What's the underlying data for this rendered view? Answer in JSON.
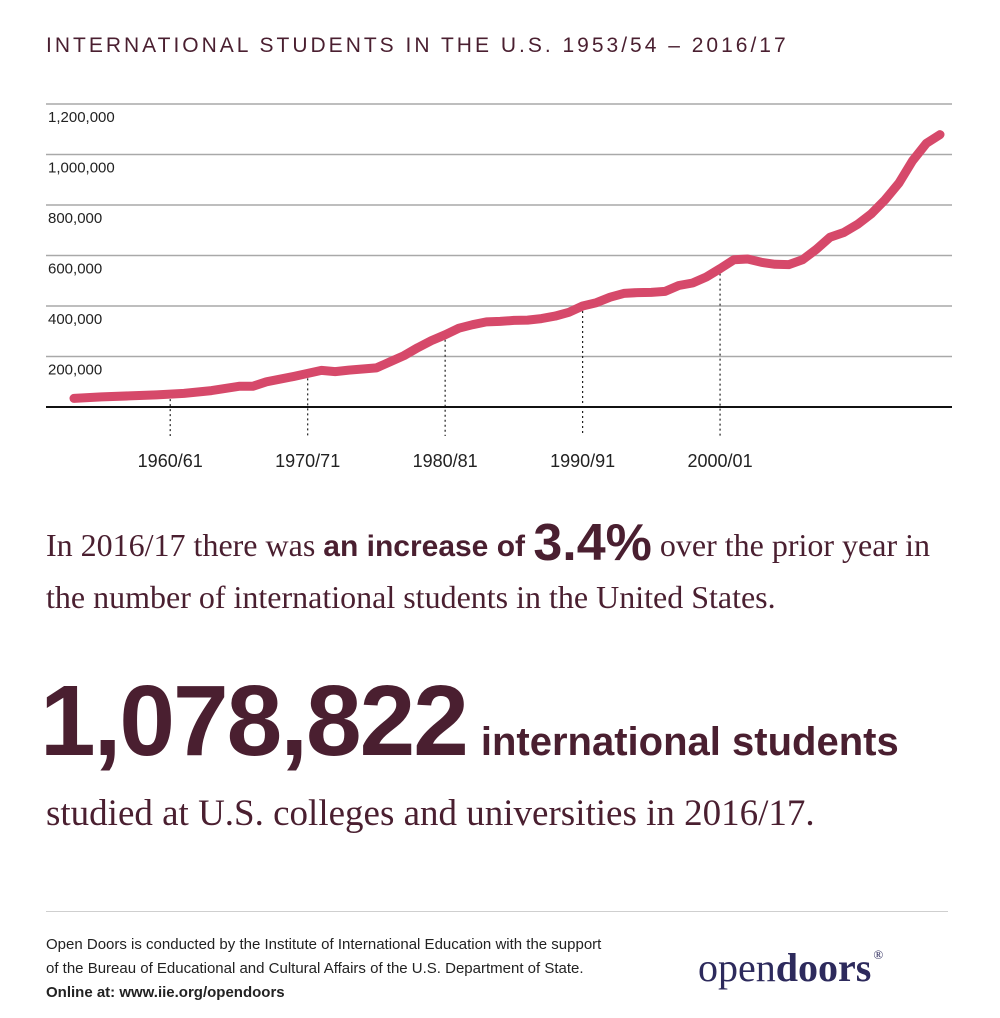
{
  "title": "INTERNATIONAL STUDENTS IN THE U.S. 1953/54 – 2016/17",
  "chart_data": {
    "type": "line",
    "ylim": [
      0,
      1200000
    ],
    "xlim": [
      1953,
      2016
    ],
    "y_ticks": [
      {
        "value": 200000,
        "label": "200,000"
      },
      {
        "value": 400000,
        "label": "400,000"
      },
      {
        "value": 600000,
        "label": "600,000"
      },
      {
        "value": 800000,
        "label": "800,000"
      },
      {
        "value": 1000000,
        "label": "1,000,000"
      },
      {
        "value": 1200000,
        "label": "1,200,000"
      }
    ],
    "x_ticks": [
      {
        "value": 1960,
        "label": "1960/61"
      },
      {
        "value": 1970,
        "label": "1970/71"
      },
      {
        "value": 1980,
        "label": "1980/81"
      },
      {
        "value": 1990,
        "label": "1990/91"
      },
      {
        "value": 2000,
        "label": "2000/01"
      }
    ],
    "grid": true,
    "line_color": "#d6496a",
    "series": [
      {
        "x": [
          1953,
          1955,
          1957,
          1959,
          1961,
          1963,
          1965,
          1966,
          1967,
          1969,
          1971,
          1972,
          1973,
          1975,
          1976,
          1977,
          1978,
          1979,
          1980,
          1981,
          1982,
          1983,
          1984,
          1985,
          1986,
          1987,
          1988,
          1989,
          1990,
          1991,
          1992,
          1993,
          1994,
          1995,
          1996,
          1997,
          1998,
          1999,
          2000,
          2001,
          2002,
          2003,
          2004,
          2005,
          2006,
          2007,
          2008,
          2009,
          2010,
          2011,
          2012,
          2013,
          2014,
          2015,
          2016
        ],
        "y": [
          34000,
          40000,
          44000,
          48000,
          54000,
          65000,
          82000,
          82000,
          100000,
          121000,
          145000,
          140000,
          146000,
          155000,
          179000,
          203000,
          235000,
          263000,
          286000,
          312000,
          326000,
          337000,
          339000,
          343000,
          344000,
          350000,
          360000,
          375000,
          400000,
          413000,
          435000,
          450000,
          453000,
          454000,
          458000,
          481000,
          491000,
          515000,
          548000,
          583000,
          586000,
          573000,
          565000,
          564000,
          583000,
          624000,
          672000,
          691000,
          723000,
          765000,
          820000,
          886000,
          975000,
          1044000,
          1078822
        ]
      }
    ]
  },
  "sentence1": {
    "prefix": "In 2016/17 there was ",
    "strong": "an increase of ",
    "pct": "3.4%",
    "suffix": " over the prior year in the number of international students in the United States."
  },
  "highlight": {
    "number": "1,078,822",
    "label": "international students"
  },
  "sentence2": "studied at U.S. colleges and universities in 2016/17.",
  "footer": {
    "text": "Open Doors is conducted by the Institute of International Education with the support of the Bureau of Educational and Cultural Affairs of the U.S. Department of State. ",
    "online": "Online at: www.iie.org/opendoors"
  },
  "logo": {
    "light": "open",
    "bold": "doors",
    "reg": "®"
  }
}
